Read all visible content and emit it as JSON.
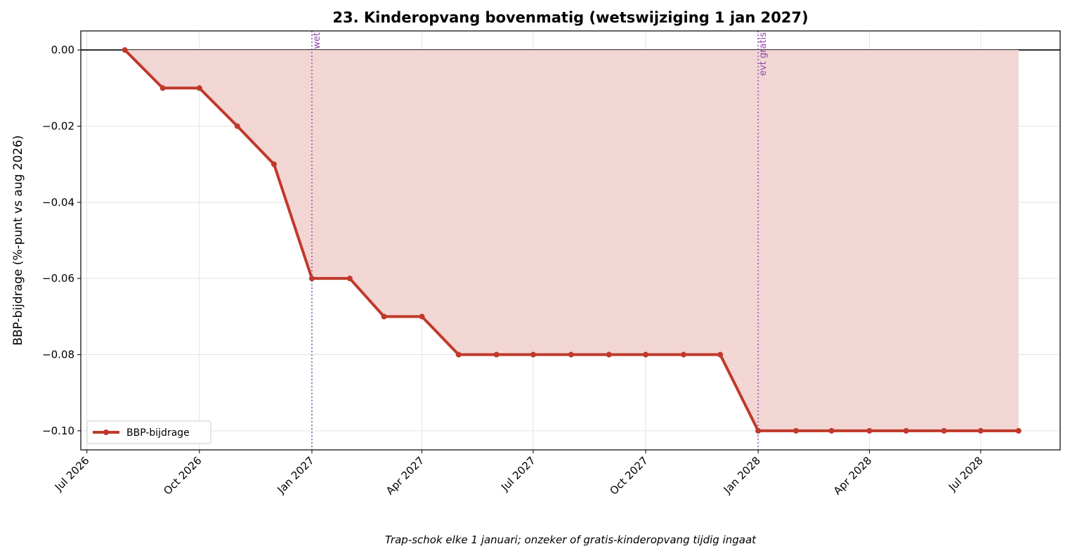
{
  "chart_data": {
    "type": "line",
    "title": "23. Kinderopvang bovenmatig (wetswijziging 1 jan 2027)",
    "y_label": "BBP-bijdrage (%-punt vs aug 2026)",
    "footnote": "Trap-schok elke 1 januari; onzeker of gratis-kinderopvang tijdig ingaat",
    "x": [
      "2026-08",
      "2026-09",
      "2026-10",
      "2026-11",
      "2026-12",
      "2027-01",
      "2027-02",
      "2027-03",
      "2027-04",
      "2027-05",
      "2027-06",
      "2027-07",
      "2027-08",
      "2027-09",
      "2027-10",
      "2027-11",
      "2027-12",
      "2028-01",
      "2028-02",
      "2028-03",
      "2028-04",
      "2028-05",
      "2028-06",
      "2028-07",
      "2028-08"
    ],
    "series": [
      {
        "name": "BBP-bijdrage",
        "color": "#c0392b",
        "fill": "#f2d6d4",
        "values": [
          0,
          -0.01,
          -0.01,
          -0.02,
          -0.03,
          -0.06,
          -0.06,
          -0.07,
          -0.07,
          -0.08,
          -0.08,
          -0.08,
          -0.08,
          -0.08,
          -0.08,
          -0.08,
          -0.08,
          -0.1,
          -0.1,
          -0.1,
          -0.1,
          -0.1,
          -0.1,
          -0.1,
          -0.1
        ]
      }
    ],
    "xlim": [
      "2026-06-26",
      "2028-09-04"
    ],
    "xticks": [
      {
        "value": "2026-07",
        "label": "Jul 2026"
      },
      {
        "value": "2026-10",
        "label": "Oct 2026"
      },
      {
        "value": "2027-01",
        "label": "Jan 2027"
      },
      {
        "value": "2027-04",
        "label": "Apr 2027"
      },
      {
        "value": "2027-07",
        "label": "Jul 2027"
      },
      {
        "value": "2027-10",
        "label": "Oct 2027"
      },
      {
        "value": "2028-01",
        "label": "Jan 2028"
      },
      {
        "value": "2028-04",
        "label": "Apr 2028"
      },
      {
        "value": "2028-07",
        "label": "Jul 2028"
      }
    ],
    "ylim": [
      -0.105,
      0.005
    ],
    "yticks": [
      {
        "value": 0,
        "label": "0.00"
      },
      {
        "value": -0.02,
        "label": "−0.02"
      },
      {
        "value": -0.04,
        "label": "−0.04"
      },
      {
        "value": -0.06,
        "label": "−0.06"
      },
      {
        "value": -0.08,
        "label": "−0.08"
      },
      {
        "value": -0.1,
        "label": "−0.10"
      }
    ],
    "grid": true,
    "legend": "lower left",
    "annotations": [
      {
        "x": "2027-01",
        "label": "wet",
        "color": "#8e44ad"
      },
      {
        "x": "2028-01",
        "label": "evt gratis",
        "color": "#8e44ad"
      }
    ]
  }
}
